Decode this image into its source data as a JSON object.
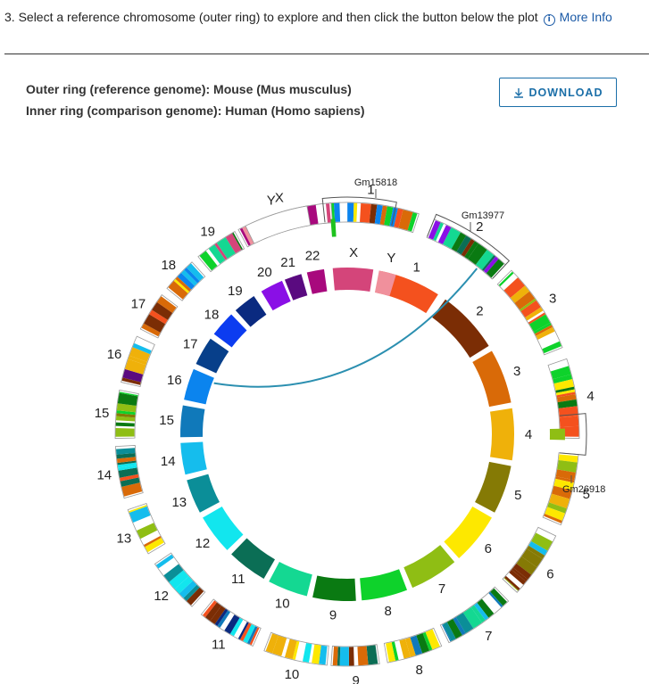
{
  "step": {
    "text": "3. Select a reference chromosome (outer ring) to explore and then click the button below the plot",
    "more_info": "More Info"
  },
  "rings": {
    "outer": "Outer ring (reference genome): Mouse (Mus musculus)",
    "inner": "Inner ring (comparison genome): Human (Homo sapiens)"
  },
  "download_label": "DOWNLOAD",
  "plot": {
    "outer_chromosomes": [
      "1",
      "2",
      "3",
      "4",
      "5",
      "6",
      "7",
      "8",
      "9",
      "10",
      "11",
      "12",
      "13",
      "14",
      "15",
      "16",
      "17",
      "18",
      "19",
      "X",
      "Y"
    ],
    "inner_chromosomes": [
      "1",
      "2",
      "3",
      "4",
      "5",
      "6",
      "7",
      "8",
      "9",
      "10",
      "11",
      "12",
      "13",
      "14",
      "15",
      "16",
      "17",
      "18",
      "19",
      "20",
      "21",
      "22",
      "X",
      "Y"
    ],
    "inner_colors": [
      "#f4511e",
      "#7b2d05",
      "#d96a08",
      "#efb10a",
      "#857a05",
      "#fde800",
      "#8fbe14",
      "#0ed22b",
      "#0a7a12",
      "#14d892",
      "#0b6e55",
      "#12e6ee",
      "#0b8e98",
      "#15bded",
      "#1079ba",
      "#0b84ee",
      "#073f8a",
      "#0c3cf0",
      "#0a2a80",
      "#8a0fe6",
      "#5a0a80",
      "#a8097d",
      "#d4457a",
      "#f0909c"
    ],
    "gene_labels": [
      "Gm15818",
      "Gm13977",
      "Gm26918"
    ]
  }
}
